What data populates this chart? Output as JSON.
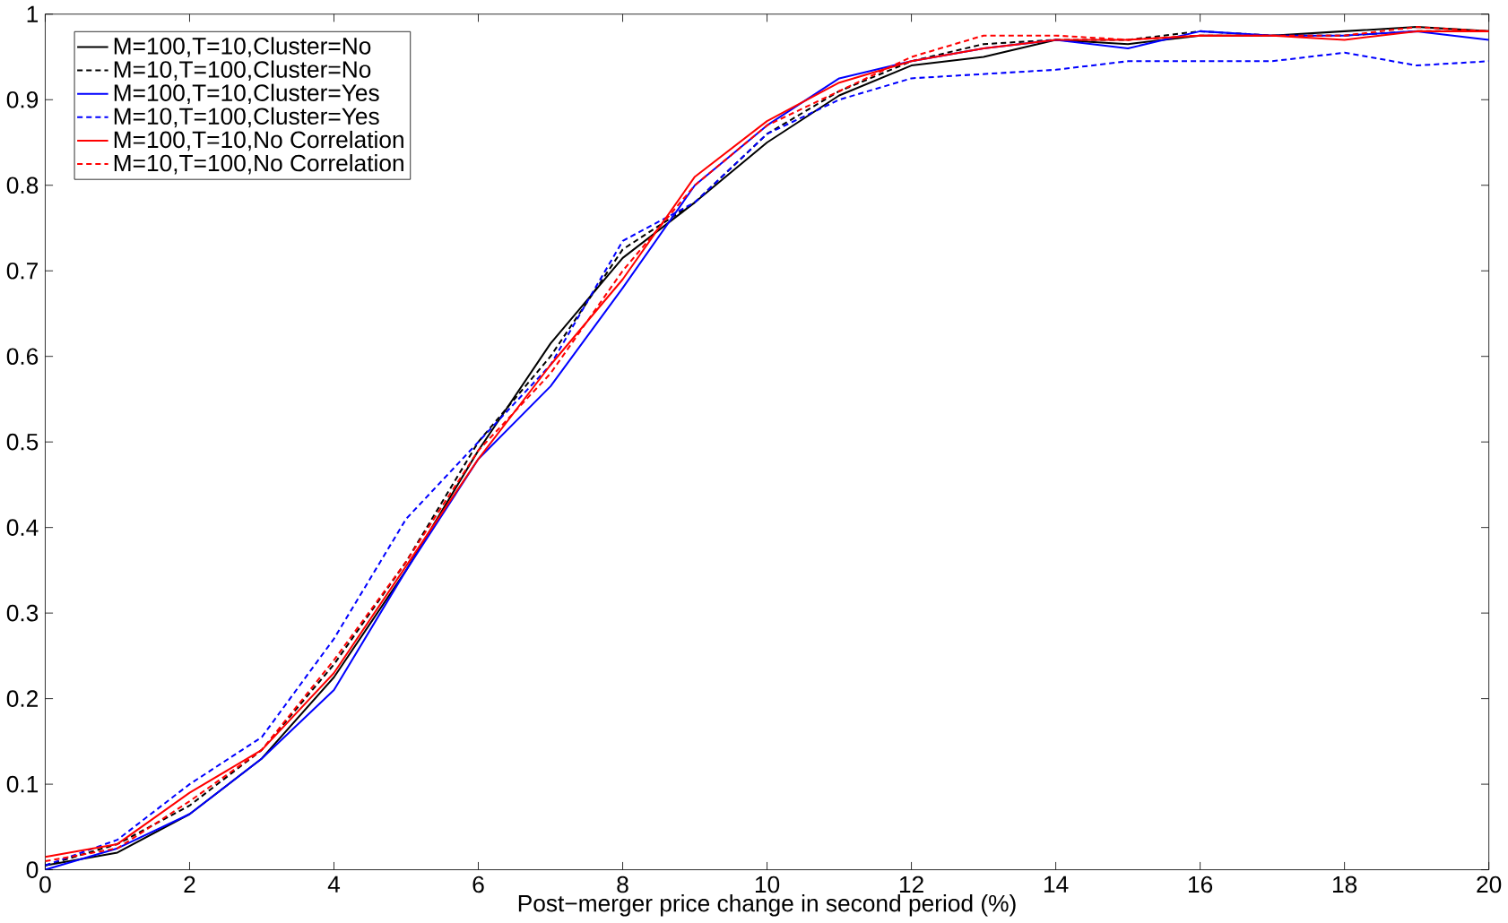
{
  "chart_data": {
    "type": "line",
    "xlabel": "Post−merger price change in second period (%)",
    "x": [
      0,
      1,
      2,
      3,
      4,
      5,
      6,
      7,
      8,
      9,
      10,
      11,
      12,
      13,
      14,
      15,
      16,
      17,
      18,
      19,
      20
    ],
    "series": [
      {
        "name": "M=100,T=10,Cluster=No",
        "color": "#000000",
        "line_style": "solid",
        "values": [
          0.005,
          0.02,
          0.065,
          0.13,
          0.225,
          0.35,
          0.49,
          0.615,
          0.715,
          0.78,
          0.85,
          0.905,
          0.94,
          0.95,
          0.97,
          0.965,
          0.975,
          0.975,
          0.98,
          0.985,
          0.98
        ]
      },
      {
        "name": "M=10,T=100,Cluster=No",
        "color": "#000000",
        "line_style": "dashed",
        "values": [
          0.005,
          0.03,
          0.075,
          0.14,
          0.24,
          0.36,
          0.5,
          0.6,
          0.725,
          0.78,
          0.86,
          0.91,
          0.945,
          0.965,
          0.97,
          0.97,
          0.98,
          0.975,
          0.975,
          0.98,
          0.98
        ]
      },
      {
        "name": "M=100,T=10,Cluster=Yes",
        "color": "#0000ff",
        "line_style": "solid",
        "values": [
          0.0,
          0.025,
          0.065,
          0.13,
          0.21,
          0.35,
          0.48,
          0.565,
          0.68,
          0.8,
          0.87,
          0.925,
          0.945,
          0.96,
          0.97,
          0.96,
          0.98,
          0.975,
          0.975,
          0.98,
          0.97
        ]
      },
      {
        "name": "M=10,T=100,Cluster=Yes",
        "color": "#0000ff",
        "line_style": "dashed",
        "values": [
          0.005,
          0.035,
          0.1,
          0.155,
          0.27,
          0.41,
          0.5,
          0.59,
          0.735,
          0.78,
          0.86,
          0.9,
          0.925,
          0.93,
          0.935,
          0.945,
          0.945,
          0.945,
          0.955,
          0.94,
          0.945
        ]
      },
      {
        "name": "M=100,T=10,No Correlation",
        "color": "#ff0000",
        "line_style": "solid",
        "values": [
          0.015,
          0.03,
          0.09,
          0.14,
          0.23,
          0.355,
          0.48,
          0.59,
          0.69,
          0.81,
          0.875,
          0.92,
          0.945,
          0.96,
          0.97,
          0.97,
          0.975,
          0.975,
          0.97,
          0.98,
          0.98
        ]
      },
      {
        "name": "M=10,T=100,No Correlation",
        "color": "#ff0000",
        "line_style": "dashed",
        "values": [
          0.01,
          0.025,
          0.08,
          0.14,
          0.245,
          0.36,
          0.49,
          0.58,
          0.7,
          0.8,
          0.87,
          0.91,
          0.95,
          0.975,
          0.975,
          0.97,
          0.975,
          0.975,
          0.975,
          0.985,
          0.98
        ]
      }
    ],
    "xlim": [
      0,
      20
    ],
    "xticks": [
      0,
      2,
      4,
      6,
      8,
      10,
      12,
      14,
      16,
      18,
      20
    ],
    "ylim": [
      0,
      1
    ],
    "yticks": [
      0,
      0.1,
      0.2,
      0.3,
      0.4,
      0.5,
      0.6,
      0.7,
      0.8,
      0.9,
      1
    ],
    "grid": false,
    "legend": "top left"
  }
}
